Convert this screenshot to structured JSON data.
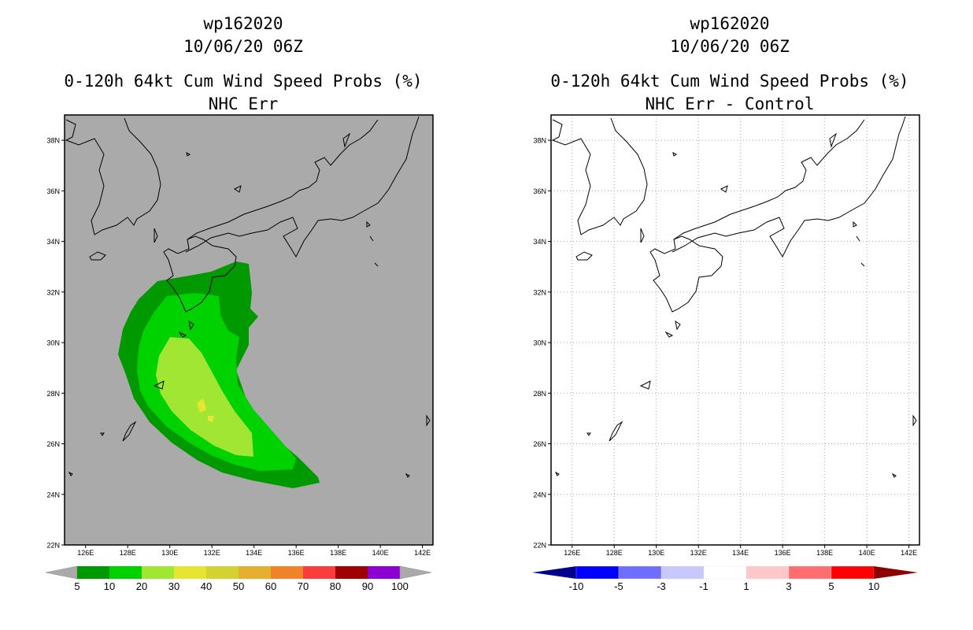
{
  "panels": [
    {
      "id": "wp162020",
      "date": "10/06/20 06Z",
      "product": "0-120h 64kt Cum Wind Speed Probs (%)",
      "subtitle": "NHC Err",
      "lat_ticks": [
        "38N",
        "36N",
        "34N",
        "32N",
        "30N",
        "28N",
        "26N",
        "24N",
        "22N"
      ],
      "lon_ticks": [
        "126E",
        "128E",
        "130E",
        "132E",
        "134E",
        "136E",
        "138E",
        "140E",
        "142E"
      ],
      "colorbar_labels": [
        "5",
        "10",
        "20",
        "30",
        "40",
        "50",
        "60",
        "70",
        "80",
        "90",
        "100"
      ],
      "colorbar_colors": [
        "#009a00",
        "#00d200",
        "#a0e632",
        "#e6e632",
        "#d2d232",
        "#e6af2d",
        "#f08228",
        "#fa3c3c",
        "#a00000",
        "#8c00d2",
        "#7800dc"
      ],
      "background_color": "#aaaaaa"
    },
    {
      "id": "wp162020",
      "date": "10/06/20 06Z",
      "product": "0-120h 64kt Cum Wind Speed Probs (%)",
      "subtitle": "NHC Err - Control",
      "lat_ticks": [
        "38N",
        "36N",
        "34N",
        "32N",
        "30N",
        "28N",
        "26N",
        "24N",
        "22N"
      ],
      "lon_ticks": [
        "126E",
        "128E",
        "130E",
        "132E",
        "134E",
        "136E",
        "138E",
        "140E",
        "142E"
      ],
      "colorbar_labels": [
        "-10",
        "-5",
        "-3",
        "-1",
        "1",
        "3",
        "5",
        "10"
      ],
      "colorbar_colors": [
        "#00008c",
        "#0000ff",
        "#6e6eff",
        "#c8c8ff",
        "#ffffff",
        "#ffc8c8",
        "#ff6e6e",
        "#ff0000",
        "#8c0000"
      ],
      "background_color": "#ffffff"
    }
  ]
}
